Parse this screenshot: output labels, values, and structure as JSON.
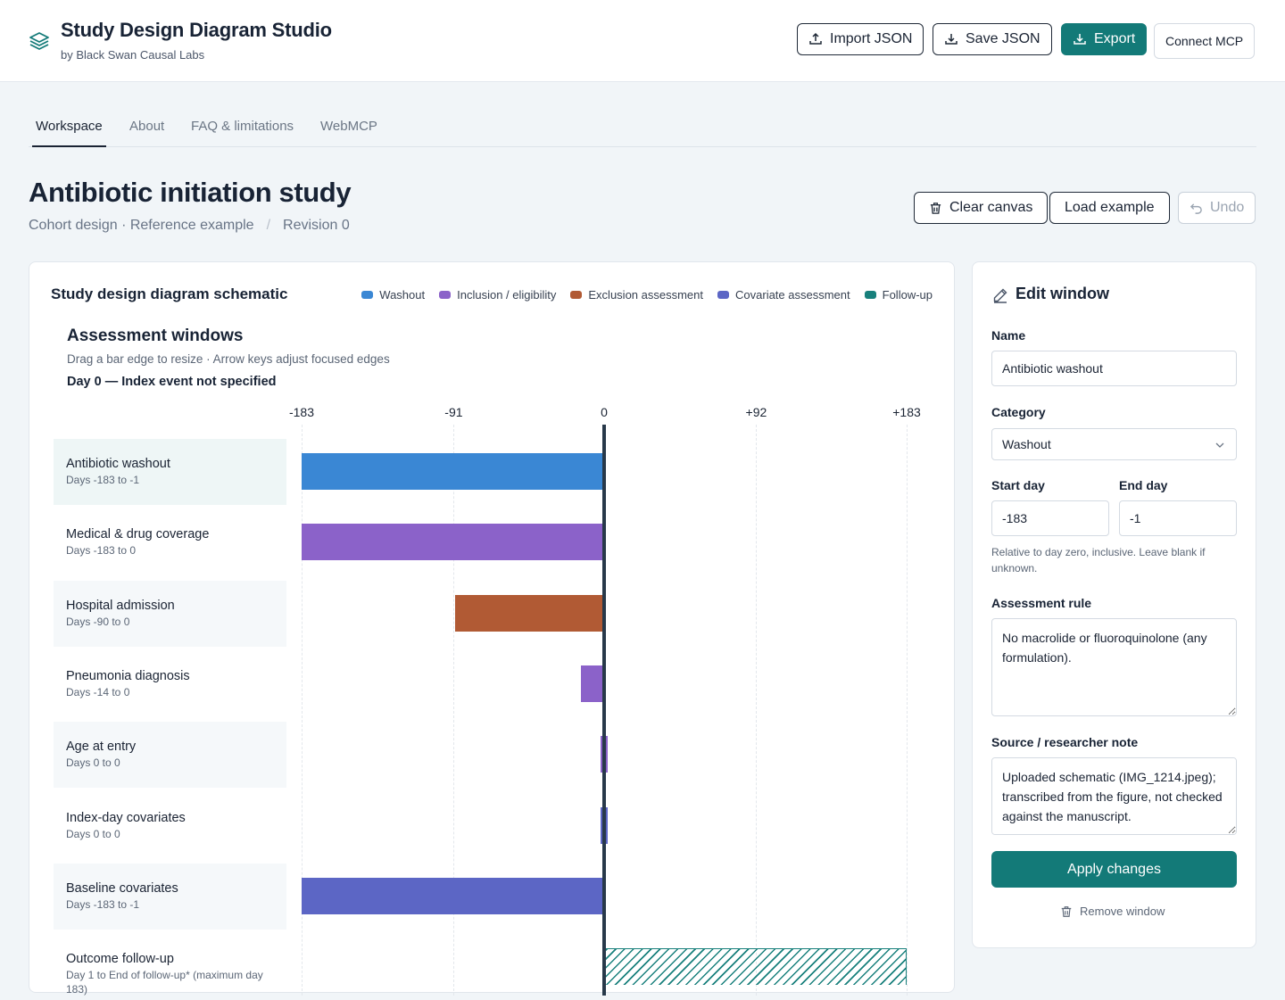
{
  "app": {
    "title": "Study Design Diagram Studio",
    "subtitle": "by Black Swan Causal Labs"
  },
  "header_actions": {
    "import_label": "Import JSON",
    "save_label": "Save JSON",
    "export_label": "Export",
    "connect_label": "Connect MCP"
  },
  "tabs": [
    {
      "label": "Workspace",
      "active": true
    },
    {
      "label": "About",
      "active": false
    },
    {
      "label": "FAQ & limitations",
      "active": false
    },
    {
      "label": "WebMCP",
      "active": false
    }
  ],
  "study": {
    "title": "Antibiotic initiation study",
    "design": "Cohort design · Reference example",
    "separator": "/",
    "revision": "Revision 0"
  },
  "study_actions": {
    "clear_label": "Clear canvas",
    "load_label": "Load example",
    "undo_label": "Undo"
  },
  "schematic": {
    "title": "Study design diagram schematic",
    "legend": [
      {
        "label": "Washout",
        "color": "#3a87d4"
      },
      {
        "label": "Inclusion / eligibility",
        "color": "#8b62c9"
      },
      {
        "label": "Exclusion assessment",
        "color": "#b15a34"
      },
      {
        "label": "Covariate assessment",
        "color": "#5c66c5"
      },
      {
        "label": "Follow-up",
        "color": "#18807c"
      }
    ]
  },
  "assessment": {
    "title": "Assessment windows",
    "hint": "Drag a bar edge to resize · Arrow keys adjust focused edges",
    "day0": "Day 0 — Index event not specified"
  },
  "chart_data": {
    "type": "bar",
    "title": "Assessment windows",
    "x_ticks": [
      -183,
      -91,
      0,
      92,
      183
    ],
    "x_tick_labels": [
      "-183",
      "-91",
      "0",
      "+92",
      "+183"
    ],
    "xlim": [
      -183,
      183
    ],
    "index_day": 0,
    "rows": [
      {
        "name": "Antibiotic washout",
        "days": "Days -183 to -1",
        "start": -183,
        "end": -1,
        "category": "Washout",
        "color": "#3a87d4",
        "selected": true
      },
      {
        "name": "Medical & drug coverage",
        "days": "Days -183 to 0",
        "start": -183,
        "end": 0,
        "category": "Inclusion / eligibility",
        "color": "#8b62c9"
      },
      {
        "name": "Hospital admission",
        "days": "Days -90 to 0",
        "start": -90,
        "end": 0,
        "category": "Exclusion assessment",
        "color": "#b15a34"
      },
      {
        "name": "Pneumonia diagnosis",
        "days": "Days -14 to 0",
        "start": -14,
        "end": 0,
        "category": "Inclusion / eligibility",
        "color": "#8b62c9"
      },
      {
        "name": "Age at entry",
        "days": "Days 0 to 0",
        "start": 0,
        "end": 0,
        "category": "Inclusion / eligibility",
        "color": "#8b62c9"
      },
      {
        "name": "Index-day covariates",
        "days": "Days 0 to 0",
        "start": 0,
        "end": 0,
        "category": "Covariate assessment",
        "color": "#5c66c5"
      },
      {
        "name": "Baseline covariates",
        "days": "Days -183 to -1",
        "start": -183,
        "end": -1,
        "category": "Covariate assessment",
        "color": "#5c66c5"
      },
      {
        "name": "Outcome follow-up",
        "days": "Day 1 to End of follow-up* (maximum day 183)",
        "start": 1,
        "end": 183,
        "category": "Follow-up",
        "color": "#18807c",
        "hatched": true
      }
    ]
  },
  "edit_panel": {
    "title": "Edit window",
    "name_label": "Name",
    "name_value": "Antibiotic washout",
    "category_label": "Category",
    "category_value": "Washout",
    "start_label": "Start day",
    "start_value": "-183",
    "end_label": "End day",
    "end_value": "-1",
    "help": "Relative to day zero, inclusive. Leave blank if unknown.",
    "rule_label": "Assessment rule",
    "rule_value": "No macrolide or fluoroquinolone (any formulation).",
    "note_label": "Source / researcher note",
    "note_value": "Uploaded schematic (IMG_1214.jpeg); transcribed from the figure, not checked against the manuscript.",
    "apply_label": "Apply changes",
    "remove_label": "Remove window"
  }
}
